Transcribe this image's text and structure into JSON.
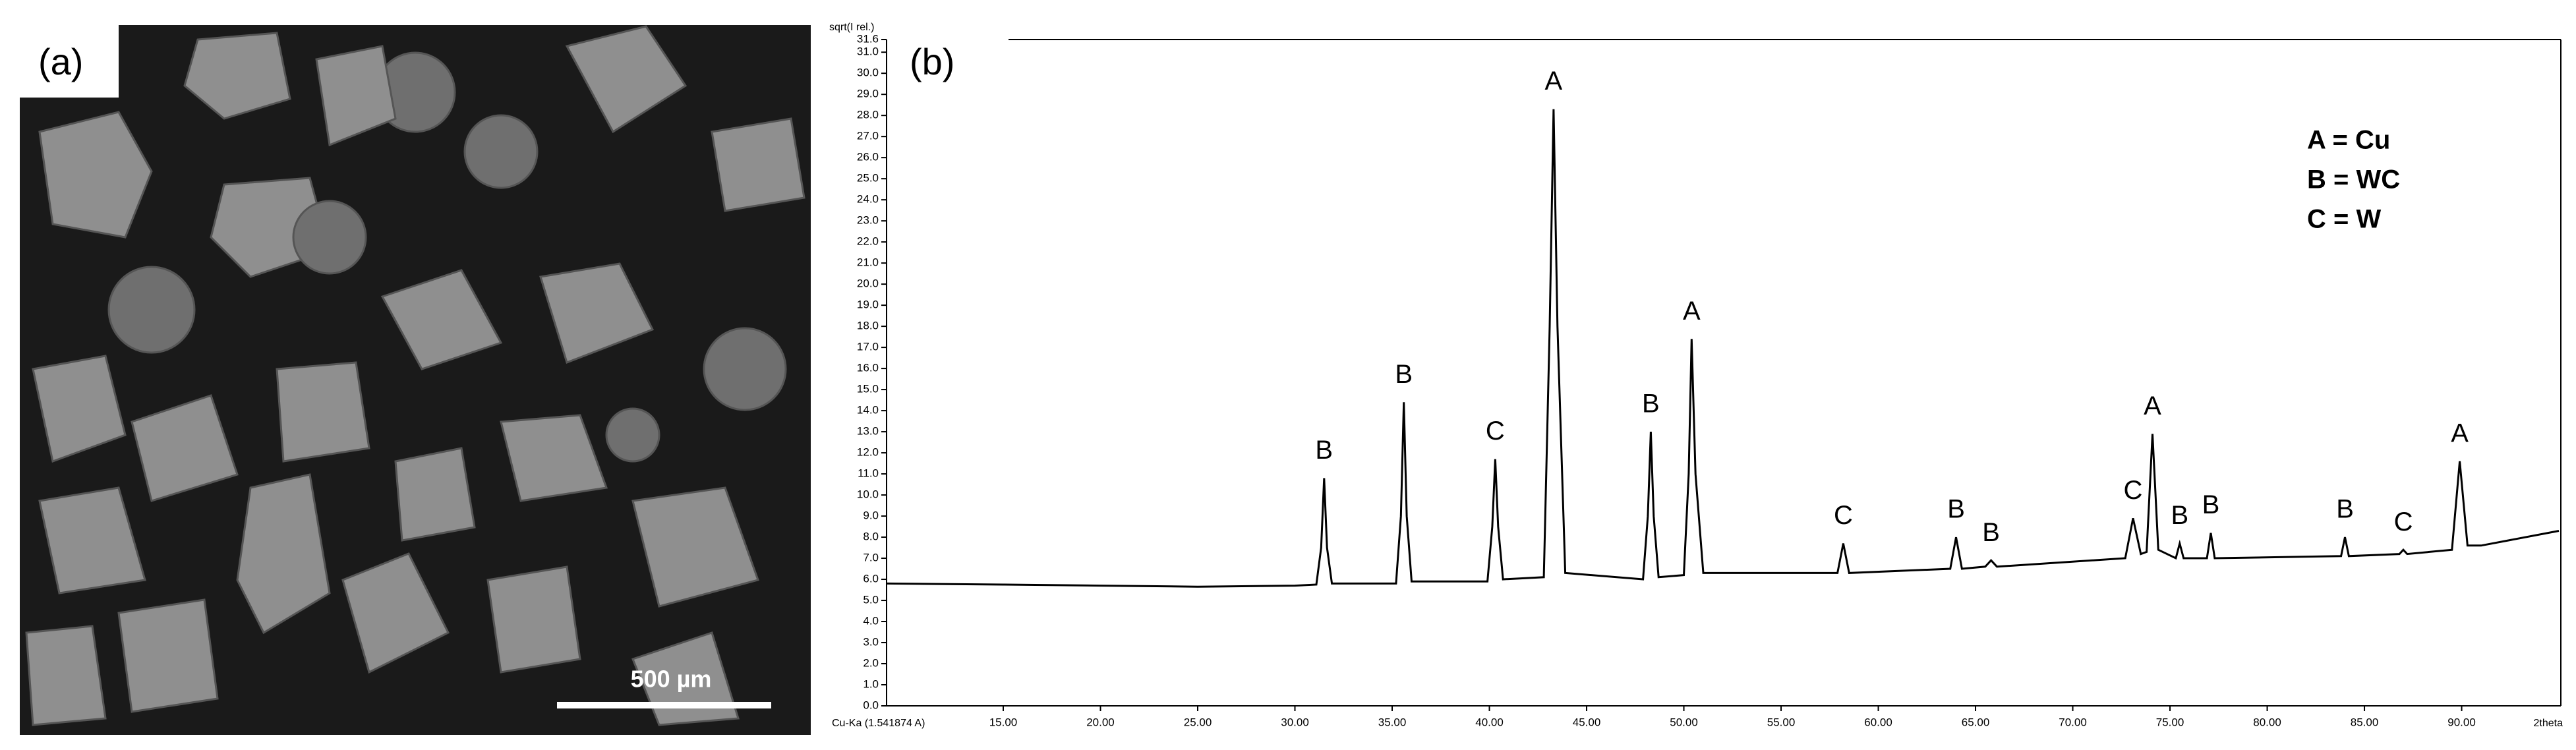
{
  "panel_a": {
    "label": "(a)",
    "scale_bar": "500 µm"
  },
  "chart_data": {
    "type": "line",
    "panel_label": "(b)",
    "y_label": "sqrt(I rel.)",
    "x_label": "2theta",
    "source_label": "Cu-Ka (1.541874 A)",
    "color": "#000000",
    "xlim": [
      9,
      95.1
    ],
    "ylim": [
      0,
      31.6
    ],
    "xticks": [
      {
        "value": 15,
        "label": "15.00"
      },
      {
        "value": 20,
        "label": "20.00"
      },
      {
        "value": 25,
        "label": "25.00"
      },
      {
        "value": 30,
        "label": "30.00"
      },
      {
        "value": 35,
        "label": "35.00"
      },
      {
        "value": 40,
        "label": "40.00"
      },
      {
        "value": 45,
        "label": "45.00"
      },
      {
        "value": 50,
        "label": "50.00"
      },
      {
        "value": 55,
        "label": "55.00"
      },
      {
        "value": 60,
        "label": "60.00"
      },
      {
        "value": 65,
        "label": "65.00"
      },
      {
        "value": 70,
        "label": "70.00"
      },
      {
        "value": 75,
        "label": "75.00"
      },
      {
        "value": 80,
        "label": "80.00"
      },
      {
        "value": 85,
        "label": "85.00"
      },
      {
        "value": 90,
        "label": "90.00"
      }
    ],
    "yticks": [
      {
        "value": 0,
        "label": "0.0"
      },
      {
        "value": 1,
        "label": "1.0"
      },
      {
        "value": 2,
        "label": "2.0"
      },
      {
        "value": 3,
        "label": "3.0"
      },
      {
        "value": 4,
        "label": "4.0"
      },
      {
        "value": 5,
        "label": "5.0"
      },
      {
        "value": 6,
        "label": "6.0"
      },
      {
        "value": 7,
        "label": "7.0"
      },
      {
        "value": 8,
        "label": "8.0"
      },
      {
        "value": 9,
        "label": "9.0"
      },
      {
        "value": 10,
        "label": "10.0"
      },
      {
        "value": 11,
        "label": "11.0"
      },
      {
        "value": 12,
        "label": "12.0"
      },
      {
        "value": 13,
        "label": "13.0"
      },
      {
        "value": 14,
        "label": "14.0"
      },
      {
        "value": 15,
        "label": "15.0"
      },
      {
        "value": 16,
        "label": "16.0"
      },
      {
        "value": 17,
        "label": "17.0"
      },
      {
        "value": 18,
        "label": "18.0"
      },
      {
        "value": 19,
        "label": "19.0"
      },
      {
        "value": 20,
        "label": "20.0"
      },
      {
        "value": 21,
        "label": "21.0"
      },
      {
        "value": 22,
        "label": "22.0"
      },
      {
        "value": 23,
        "label": "23.0"
      },
      {
        "value": 24,
        "label": "24.0"
      },
      {
        "value": 25,
        "label": "25.0"
      },
      {
        "value": 26,
        "label": "26.0"
      },
      {
        "value": 27,
        "label": "27.0"
      },
      {
        "value": 28,
        "label": "28.0"
      },
      {
        "value": 29,
        "label": "29.0"
      },
      {
        "value": 30,
        "label": "30.0"
      },
      {
        "value": 31,
        "label": "31.0"
      },
      {
        "value": 31.6,
        "label": "31.6"
      }
    ],
    "x": [
      9,
      15,
      20,
      25,
      30,
      31.1,
      31.35,
      31.5,
      31.65,
      31.9,
      35.2,
      35.45,
      35.6,
      35.75,
      36.0,
      39.9,
      40.15,
      40.3,
      40.45,
      40.7,
      42.8,
      43.1,
      43.3,
      43.5,
      43.9,
      47.9,
      48.15,
      48.3,
      48.45,
      48.7,
      50.0,
      50.25,
      50.4,
      50.6,
      51.0,
      57.9,
      58.2,
      58.5,
      63.7,
      64.0,
      64.3,
      65.5,
      65.8,
      66.1,
      72.7,
      73.1,
      73.5,
      73.8,
      74.1,
      74.4,
      75.3,
      75.5,
      75.7,
      76.9,
      77.1,
      77.3,
      83.8,
      84.0,
      84.2,
      86.8,
      87.0,
      87.2,
      89.5,
      89.9,
      90.3,
      91,
      95
    ],
    "values": [
      5.8,
      5.75,
      5.7,
      5.65,
      5.7,
      5.75,
      7.5,
      10.8,
      7.5,
      5.8,
      5.8,
      9,
      14.4,
      9,
      5.9,
      5.9,
      8.5,
      11.7,
      8.5,
      6.0,
      6.1,
      18,
      28.3,
      18,
      6.3,
      6.0,
      9,
      13.0,
      9,
      6.1,
      6.2,
      11,
      17.4,
      11,
      6.3,
      6.3,
      7.7,
      6.3,
      6.5,
      8.0,
      6.5,
      6.6,
      6.9,
      6.6,
      7.0,
      8.9,
      7.2,
      7.3,
      12.9,
      7.4,
      7.0,
      7.7,
      7.0,
      7.0,
      8.2,
      7.0,
      7.1,
      8.0,
      7.1,
      7.2,
      7.4,
      7.2,
      7.4,
      11.6,
      7.6,
      7.6,
      8.3
    ],
    "peak_labels": [
      {
        "text": "B",
        "x": 31.5
      },
      {
        "text": "B",
        "x": 35.6
      },
      {
        "text": "C",
        "x": 40.3
      },
      {
        "text": "A",
        "x": 43.3
      },
      {
        "text": "B",
        "x": 48.3
      },
      {
        "text": "A",
        "x": 50.4
      },
      {
        "text": "C",
        "x": 58.2
      },
      {
        "text": "B",
        "x": 64.0
      },
      {
        "text": "B",
        "x": 65.8
      },
      {
        "text": "C",
        "x": 73.1
      },
      {
        "text": "A",
        "x": 74.1
      },
      {
        "text": "B",
        "x": 75.5
      },
      {
        "text": "B",
        "x": 77.1
      },
      {
        "text": "B",
        "x": 84.0
      },
      {
        "text": "C",
        "x": 87.0
      },
      {
        "text": "A",
        "x": 89.9
      }
    ],
    "legend": [
      "A = Cu",
      "B = WC",
      "C = W"
    ]
  }
}
